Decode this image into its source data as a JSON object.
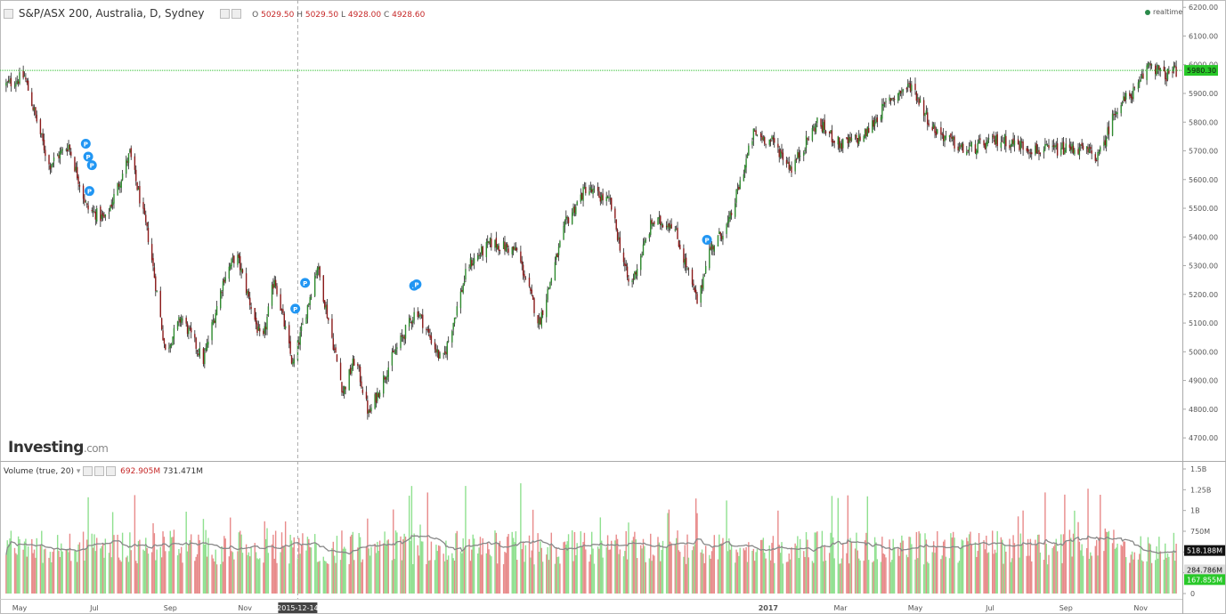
{
  "header": {
    "title": "S&P/ASX 200, Australia, D, Sydney",
    "ohlc": {
      "o_label": "O",
      "o_value": "5029.50",
      "h_label": "H",
      "h_value": "5029.50",
      "l_label": "L",
      "l_value": "4928.00",
      "c_label": "C",
      "c_value": "4928.60"
    },
    "realtime_label": "realtime"
  },
  "logo": {
    "brand": "Investing",
    "suffix": ".com"
  },
  "volume_header": {
    "label": "Volume (true, 20)",
    "value1": "692.905M",
    "value2": "731.471M"
  },
  "crosshair_date": "2015-12-14",
  "colors": {
    "up": "#2e8b2e",
    "down": "#8b1a1a",
    "vol_up": "#8fe08f",
    "vol_down": "#e88a8a",
    "ma_line": "#888888",
    "last_price_bg": "#28c828",
    "vol_badge_dark": "#111111",
    "vol_badge_green": "#28c828"
  },
  "chart_data": [
    {
      "type": "candlestick",
      "title": "S&P/ASX 200, Australia, D, Sydney",
      "y_ticks": [
        "6200.00",
        "6100.00",
        "6000.00",
        "5900.00",
        "5800.00",
        "5700.00",
        "5600.00",
        "5500.00",
        "5400.00",
        "5300.00",
        "5200.00",
        "5100.00",
        "5000.00",
        "4900.00",
        "4800.00",
        "4700.00"
      ],
      "ylim": [
        4660,
        6210
      ],
      "x_ticks": [
        "May",
        "Jul",
        "Sep",
        "Nov",
        "2017",
        "Mar",
        "May",
        "Jul",
        "Sep",
        "Nov"
      ],
      "last_price": "5980.30",
      "markers": [
        "P",
        "P",
        "P",
        "P",
        "P",
        "P",
        "P",
        "P",
        "P"
      ],
      "trend_keypoints": [
        {
          "date": "2015-04-20",
          "close": 5930
        },
        {
          "date": "2015-05-05",
          "close": 5960
        },
        {
          "date": "2015-05-25",
          "close": 5650
        },
        {
          "date": "2015-06-10",
          "close": 5720
        },
        {
          "date": "2015-06-25",
          "close": 5500
        },
        {
          "date": "2015-07-10",
          "close": 5460
        },
        {
          "date": "2015-07-30",
          "close": 5690
        },
        {
          "date": "2015-08-15",
          "close": 5380
        },
        {
          "date": "2015-08-28",
          "close": 5000
        },
        {
          "date": "2015-09-10",
          "close": 5120
        },
        {
          "date": "2015-09-28",
          "close": 4970
        },
        {
          "date": "2015-10-15",
          "close": 5260
        },
        {
          "date": "2015-10-25",
          "close": 5340
        },
        {
          "date": "2015-11-15",
          "close": 5020
        },
        {
          "date": "2015-11-25",
          "close": 5260
        },
        {
          "date": "2015-12-10",
          "close": 4950
        },
        {
          "date": "2015-12-30",
          "close": 5300
        },
        {
          "date": "2016-01-20",
          "close": 4860
        },
        {
          "date": "2016-01-30",
          "close": 4980
        },
        {
          "date": "2016-02-10",
          "close": 4780
        },
        {
          "date": "2016-02-28",
          "close": 4970
        },
        {
          "date": "2016-03-20",
          "close": 5150
        },
        {
          "date": "2016-04-10",
          "close": 4960
        },
        {
          "date": "2016-05-01",
          "close": 5300
        },
        {
          "date": "2016-05-20",
          "close": 5380
        },
        {
          "date": "2016-06-10",
          "close": 5350
        },
        {
          "date": "2016-06-28",
          "close": 5100
        },
        {
          "date": "2016-07-20",
          "close": 5450
        },
        {
          "date": "2016-08-05",
          "close": 5570
        },
        {
          "date": "2016-08-25",
          "close": 5520
        },
        {
          "date": "2016-09-10",
          "close": 5220
        },
        {
          "date": "2016-09-28",
          "close": 5450
        },
        {
          "date": "2016-10-15",
          "close": 5450
        },
        {
          "date": "2016-11-05",
          "close": 5160
        },
        {
          "date": "2016-11-12",
          "close": 5340
        },
        {
          "date": "2016-11-30",
          "close": 5450
        },
        {
          "date": "2016-12-20",
          "close": 5760
        },
        {
          "date": "2017-01-05",
          "close": 5730
        },
        {
          "date": "2017-01-20",
          "close": 5640
        },
        {
          "date": "2017-02-10",
          "close": 5800
        },
        {
          "date": "2017-03-01",
          "close": 5720
        },
        {
          "date": "2017-03-20",
          "close": 5750
        },
        {
          "date": "2017-04-10",
          "close": 5880
        },
        {
          "date": "2017-04-28",
          "close": 5930
        },
        {
          "date": "2017-05-15",
          "close": 5780
        },
        {
          "date": "2017-06-10",
          "close": 5700
        },
        {
          "date": "2017-07-10",
          "close": 5740
        },
        {
          "date": "2017-08-10",
          "close": 5700
        },
        {
          "date": "2017-09-10",
          "close": 5710
        },
        {
          "date": "2017-09-28",
          "close": 5680
        },
        {
          "date": "2017-10-12",
          "close": 5850
        },
        {
          "date": "2017-10-30",
          "close": 5920
        },
        {
          "date": "2017-11-08",
          "close": 6010
        },
        {
          "date": "2017-11-20",
          "close": 5960
        },
        {
          "date": "2017-11-30",
          "close": 5980
        }
      ]
    },
    {
      "type": "bar",
      "title": "Volume (true, 20)",
      "y_ticks": [
        "1.5B",
        "1.25B",
        "1B",
        "750M",
        "500M",
        "250M",
        "0"
      ],
      "ylim": [
        0,
        1500
      ],
      "y_unit": "M",
      "badges": [
        "518.188M",
        "284.786M",
        "167.855M"
      ]
    }
  ]
}
